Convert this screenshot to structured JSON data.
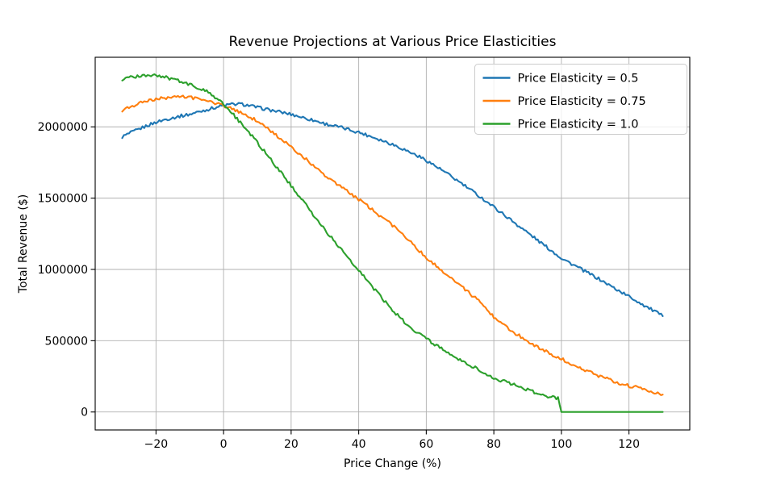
{
  "figure": {
    "background": "#ffffff",
    "spine_color": "#000000",
    "grid_color": "#b0b0b0",
    "text_color": "#000000"
  },
  "chart_data": {
    "type": "line",
    "title": "Revenue Projections at Various Price Elasticities",
    "xlabel": "Price Change (%)",
    "ylabel": "Total Revenue ($)",
    "grid": true,
    "xlim": [
      -38,
      138
    ],
    "ylim": [
      -126000,
      2488000
    ],
    "x_ticks": [
      -20,
      0,
      20,
      40,
      60,
      80,
      100,
      120
    ],
    "x_tick_labels": [
      "−20",
      "0",
      "20",
      "40",
      "60",
      "80",
      "100",
      "120"
    ],
    "y_ticks": [
      0,
      500000,
      1000000,
      1500000,
      2000000
    ],
    "y_tick_labels": [
      "0",
      "500000",
      "1000000",
      "1500000",
      "2000000"
    ],
    "legend": {
      "position": "upper right",
      "entries": [
        "Price Elasticity = 0.5",
        "Price Elasticity = 0.75",
        "Price Elasticity = 1.0"
      ]
    },
    "noise_amplitude_usd": 11000,
    "line_width": 2.1,
    "series": [
      {
        "name": "Price Elasticity = 0.5",
        "color": "#1f77b4",
        "x": [
          -30,
          -27.5,
          -25,
          -22.5,
          -20,
          -17.5,
          -15,
          -12.5,
          -10,
          -7.5,
          -5,
          -2.5,
          0,
          2.5,
          5,
          7.5,
          10,
          12.5,
          15,
          17.5,
          20,
          22.5,
          25,
          27.5,
          30,
          32.5,
          35,
          37.5,
          40,
          42.5,
          45,
          47.5,
          50,
          52.5,
          55,
          57.5,
          60,
          62.5,
          65,
          67.5,
          70,
          72.5,
          75,
          77.5,
          80,
          82.5,
          85,
          87.5,
          90,
          92.5,
          95,
          97.5,
          100,
          102.5,
          105,
          107.5,
          110,
          112.5,
          115,
          117.5,
          120,
          122.5,
          125,
          127.5,
          130
        ],
        "y": [
          1930000,
          1958000,
          1984000,
          2010000,
          2032000,
          2050000,
          2064000,
          2077000,
          2088000,
          2105000,
          2120000,
          2136000,
          2150000,
          2158000,
          2160000,
          2150000,
          2136000,
          2124000,
          2112000,
          2100000,
          2088000,
          2072000,
          2056000,
          2040000,
          2022000,
          2008000,
          1994000,
          1978000,
          1962000,
          1942000,
          1922000,
          1900000,
          1878000,
          1852000,
          1824000,
          1796000,
          1766000,
          1728000,
          1690000,
          1650000,
          1610000,
          1568000,
          1526000,
          1482000,
          1438000,
          1393000,
          1348000,
          1303000,
          1258000,
          1213000,
          1168000,
          1124000,
          1080000,
          1046000,
          1013000,
          980000,
          948000,
          913000,
          878000,
          844000,
          810000,
          776000,
          741000,
          707000,
          672000
        ]
      },
      {
        "name": "Price Elasticity = 0.75",
        "color": "#ff7f0e",
        "x": [
          -30,
          -27.5,
          -25,
          -22.5,
          -20,
          -17.5,
          -15,
          -12.5,
          -10,
          -7.5,
          -5,
          -2.5,
          0,
          2.5,
          5,
          7.5,
          10,
          12.5,
          15,
          17.5,
          20,
          22.5,
          25,
          27.5,
          30,
          32.5,
          35,
          37.5,
          40,
          42.5,
          45,
          47.5,
          50,
          52.5,
          55,
          57.5,
          60,
          62.5,
          65,
          67.5,
          70,
          72.5,
          75,
          77.5,
          80,
          82.5,
          85,
          87.5,
          90,
          92.5,
          95,
          97.5,
          100,
          102.5,
          105,
          107.5,
          110,
          112.5,
          115,
          117.5,
          120,
          122.5,
          125,
          127.5,
          130
        ],
        "y": [
          2117000,
          2142000,
          2164000,
          2180000,
          2192000,
          2203000,
          2211000,
          2210000,
          2207000,
          2196000,
          2183000,
          2168000,
          2150000,
          2126000,
          2100000,
          2072000,
          2040000,
          1997000,
          1952000,
          1905000,
          1856000,
          1808000,
          1760000,
          1710000,
          1660000,
          1618000,
          1576000,
          1534000,
          1492000,
          1446000,
          1400000,
          1354000,
          1308000,
          1258000,
          1208000,
          1144000,
          1080000,
          1032000,
          986000,
          937000,
          888000,
          839000,
          790000,
          728000,
          665000,
          625000,
          570000,
          535000,
          498000,
          462000,
          430000,
          400000,
          372000,
          342000,
          315000,
          288000,
          262000,
          240000,
          220000,
          200000,
          183000,
          172000,
          152000,
          140000,
          122000
        ]
      },
      {
        "name": "Price Elasticity = 1.0",
        "color": "#2ca02c",
        "x": [
          -30,
          -27.5,
          -25,
          -22.5,
          -20,
          -17.5,
          -15,
          -12.5,
          -10,
          -7.5,
          -5,
          -2.5,
          0,
          2.5,
          5,
          7.5,
          10,
          12.5,
          15,
          17.5,
          20,
          22.5,
          25,
          27.5,
          30,
          32.5,
          35,
          37.5,
          40,
          42.5,
          45,
          47.5,
          50,
          52.5,
          55,
          57.5,
          60,
          62.5,
          65,
          67.5,
          70,
          72.5,
          75,
          77.5,
          80,
          82.5,
          85,
          87.5,
          90,
          92.5,
          95,
          97.5,
          99,
          100,
          102.5,
          105,
          107.5,
          110,
          112.5,
          115,
          117.5,
          120,
          122.5,
          125,
          127.5,
          130
        ],
        "y": [
          2330000,
          2346000,
          2358000,
          2362000,
          2362000,
          2350000,
          2334000,
          2316000,
          2296000,
          2274000,
          2248000,
          2208000,
          2160000,
          2096000,
          2030000,
          1960000,
          1890000,
          1816000,
          1740000,
          1665000,
          1588000,
          1510000,
          1432000,
          1355000,
          1277000,
          1205000,
          1133000,
          1062000,
          992000,
          922000,
          852000,
          782000,
          712000,
          655000,
          600000,
          556000,
          515000,
          474000,
          436000,
          400000,
          366000,
          334000,
          304000,
          270000,
          240000,
          218000,
          198000,
          176000,
          155000,
          135000,
          116000,
          103000,
          96000,
          0,
          0,
          0,
          0,
          0,
          0,
          0,
          0,
          0,
          0,
          0,
          0,
          0
        ]
      }
    ]
  }
}
